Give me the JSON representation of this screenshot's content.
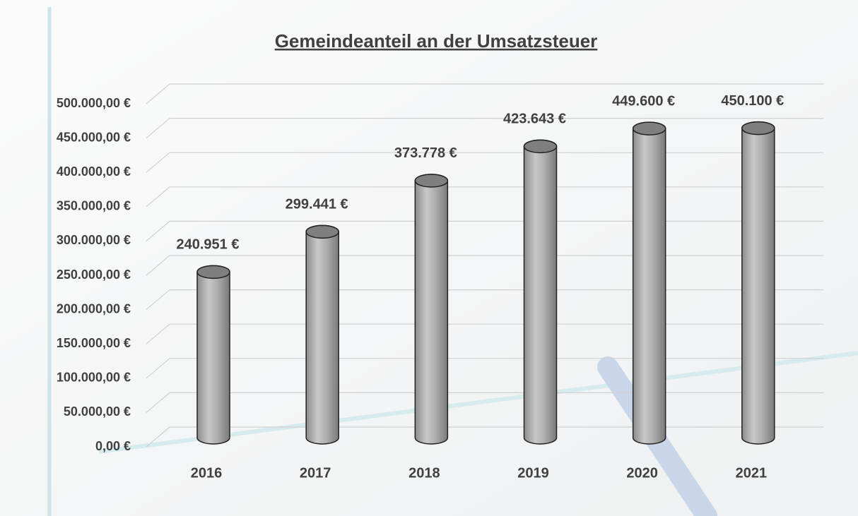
{
  "chart_data": {
    "type": "bar",
    "title": "Gemeindeanteil an der Umsatzsteuer",
    "categories": [
      "2016",
      "2017",
      "2018",
      "2019",
      "2020",
      "2021"
    ],
    "values": [
      240951,
      299441,
      373778,
      423643,
      449600,
      450100
    ],
    "value_labels": [
      "240.951 €",
      "299.441 €",
      "373.778 €",
      "423.643 €",
      "449.600 €",
      "450.100 €"
    ],
    "color": "#a6a6a6",
    "ylim": [
      0,
      500000
    ],
    "yticks": [
      {
        "value": 0,
        "label": "0,00 €"
      },
      {
        "value": 50000,
        "label": "50.000,00 €"
      },
      {
        "value": 100000,
        "label": "100.000,00 €"
      },
      {
        "value": 150000,
        "label": "150.000,00 €"
      },
      {
        "value": 200000,
        "label": "200.000,00 €"
      },
      {
        "value": 250000,
        "label": "250.000,00 €"
      },
      {
        "value": 300000,
        "label": "300.000,00 €"
      },
      {
        "value": 350000,
        "label": "350.000,00 €"
      },
      {
        "value": 400000,
        "label": "400.000,00 €"
      },
      {
        "value": 450000,
        "label": "450.000,00 €"
      },
      {
        "value": 500000,
        "label": "500.000,00 €"
      }
    ],
    "grid": true
  }
}
